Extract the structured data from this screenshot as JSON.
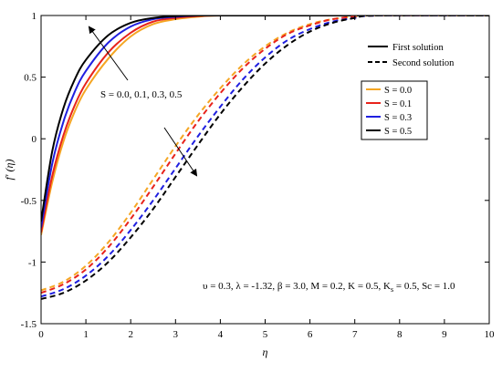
{
  "chart_data": {
    "type": "line",
    "title": "",
    "xlabel": "η",
    "ylabel": "f′ (η)",
    "xlim": [
      0,
      10
    ],
    "ylim": [
      -1.5,
      1
    ],
    "xticks": [
      "0",
      "1",
      "2",
      "3",
      "4",
      "5",
      "6",
      "7",
      "8",
      "9",
      "10"
    ],
    "yticks": [
      "1",
      "0.5",
      "0",
      "-0.5",
      "-1",
      "-1.5"
    ],
    "grid": false,
    "legend_style": {
      "position": "top-right",
      "entries": [
        {
          "label": "First solution",
          "dash": "solid"
        },
        {
          "label": "Second solution",
          "dash": "dashed"
        }
      ]
    },
    "legend_S": {
      "position": "upper-right",
      "entries": [
        {
          "label": "S = 0.0",
          "color": "#f5a623"
        },
        {
          "label": "S = 0.1",
          "color": "#e8231b"
        },
        {
          "label": "S = 0.3",
          "color": "#1f1fe0"
        },
        {
          "label": "S = 0.5",
          "color": "#000000"
        }
      ]
    },
    "annotation_first": "S = 0.0, 0.1, 0.3, 0.5",
    "annotation_params": "υ = 0.3, λ = -1.32, β = 3.0, M = 0.2, K = 0.5, K",
    "annotation_params_sub": "s",
    "annotation_params_tail": " = 0.5, Sc = 1.0",
    "series": [
      {
        "name": "S = 0.0",
        "solution": "first",
        "color": "#f5a623",
        "dash": "solid",
        "x": [
          0,
          0.25,
          0.5,
          0.75,
          1.0,
          1.5,
          2.0,
          2.5,
          3.0,
          3.5,
          4.0,
          6.0,
          10.0
        ],
        "y": [
          -0.78,
          -0.35,
          -0.02,
          0.22,
          0.4,
          0.65,
          0.83,
          0.93,
          0.97,
          0.99,
          1.0,
          1.0,
          1.0
        ]
      },
      {
        "name": "S = 0.1",
        "solution": "first",
        "color": "#e8231b",
        "dash": "solid",
        "x": [
          0,
          0.25,
          0.5,
          0.75,
          1.0,
          1.5,
          2.0,
          2.5,
          3.0,
          3.5,
          4.0,
          6.0,
          10.0
        ],
        "y": [
          -0.76,
          -0.3,
          0.03,
          0.27,
          0.45,
          0.7,
          0.86,
          0.95,
          0.98,
          0.995,
          1.0,
          1.0,
          1.0
        ]
      },
      {
        "name": "S = 0.3",
        "solution": "first",
        "color": "#1f1fe0",
        "dash": "solid",
        "x": [
          0,
          0.25,
          0.5,
          0.75,
          1.0,
          1.5,
          2.0,
          2.5,
          3.0,
          3.5,
          4.0,
          6.0,
          10.0
        ],
        "y": [
          -0.72,
          -0.2,
          0.14,
          0.38,
          0.55,
          0.78,
          0.91,
          0.97,
          0.99,
          1.0,
          1.0,
          1.0,
          1.0
        ]
      },
      {
        "name": "S = 0.5",
        "solution": "first",
        "color": "#000000",
        "dash": "solid",
        "x": [
          0,
          0.25,
          0.5,
          0.75,
          1.0,
          1.5,
          2.0,
          2.5,
          3.0,
          3.5,
          4.0,
          6.0,
          10.0
        ],
        "y": [
          -0.67,
          -0.1,
          0.25,
          0.48,
          0.64,
          0.84,
          0.94,
          0.98,
          0.995,
          1.0,
          1.0,
          1.0,
          1.0
        ]
      },
      {
        "name": "S = 0.0",
        "solution": "second",
        "color": "#f5a623",
        "dash": "dashed",
        "x": [
          0,
          0.5,
          1.0,
          1.5,
          2.0,
          2.5,
          3.0,
          3.5,
          4.0,
          4.5,
          5.0,
          5.5,
          6.0,
          6.5,
          7.0,
          7.5,
          10.0
        ],
        "y": [
          -1.23,
          -1.16,
          -1.03,
          -0.84,
          -0.6,
          -0.33,
          -0.06,
          0.19,
          0.41,
          0.6,
          0.75,
          0.86,
          0.93,
          0.97,
          0.99,
          1.0,
          1.0
        ]
      },
      {
        "name": "S = 0.1",
        "solution": "second",
        "color": "#e8231b",
        "dash": "dashed",
        "x": [
          0,
          0.5,
          1.0,
          1.5,
          2.0,
          2.5,
          3.0,
          3.5,
          4.0,
          4.5,
          5.0,
          5.5,
          6.0,
          6.5,
          7.0,
          7.5,
          10.0
        ],
        "y": [
          -1.25,
          -1.18,
          -1.06,
          -0.88,
          -0.65,
          -0.39,
          -0.12,
          0.14,
          0.37,
          0.57,
          0.73,
          0.85,
          0.92,
          0.97,
          0.99,
          1.0,
          1.0
        ]
      },
      {
        "name": "S = 0.3",
        "solution": "second",
        "color": "#1f1fe0",
        "dash": "dashed",
        "x": [
          0,
          0.5,
          1.0,
          1.5,
          2.0,
          2.5,
          3.0,
          3.5,
          4.0,
          4.5,
          5.0,
          5.5,
          6.0,
          6.5,
          7.0,
          7.5,
          10.0
        ],
        "y": [
          -1.28,
          -1.22,
          -1.11,
          -0.95,
          -0.74,
          -0.5,
          -0.24,
          0.02,
          0.26,
          0.48,
          0.66,
          0.8,
          0.89,
          0.95,
          0.98,
          1.0,
          1.0
        ]
      },
      {
        "name": "S = 0.5",
        "solution": "second",
        "color": "#000000",
        "dash": "dashed",
        "x": [
          0,
          0.5,
          1.0,
          1.5,
          2.0,
          2.5,
          3.0,
          3.5,
          4.0,
          4.5,
          5.0,
          5.5,
          6.0,
          6.5,
          7.0,
          7.5,
          10.0
        ],
        "y": [
          -1.3,
          -1.25,
          -1.15,
          -1.0,
          -0.8,
          -0.57,
          -0.31,
          -0.05,
          0.2,
          0.42,
          0.61,
          0.76,
          0.87,
          0.94,
          0.98,
          1.0,
          1.0
        ]
      }
    ]
  }
}
